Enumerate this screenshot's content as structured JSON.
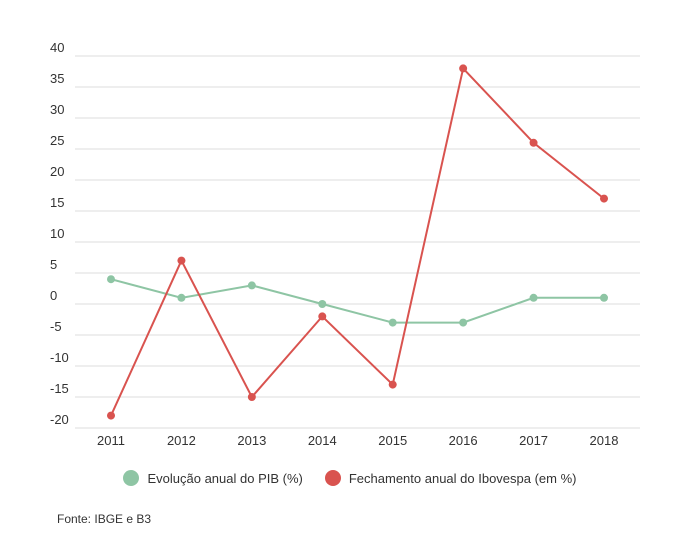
{
  "chart_data": {
    "type": "line",
    "x": [
      "2011",
      "2012",
      "2013",
      "2014",
      "2015",
      "2016",
      "2017",
      "2018"
    ],
    "ylim": [
      -20,
      40
    ],
    "yticks": [
      40,
      35,
      30,
      25,
      20,
      15,
      10,
      5,
      0,
      -5,
      -10,
      -15,
      -20
    ],
    "grid": true,
    "legend_position": "bottom",
    "series": [
      {
        "name": "Evolução anual do PIB (%)",
        "color": "#8ec5a4",
        "values": [
          4.0,
          1.0,
          3.0,
          0.0,
          -3.0,
          -3.0,
          1.0,
          1.0
        ]
      },
      {
        "name": "Fechamento anual do Ibovespa (em %)",
        "color": "#d9534f",
        "values": [
          -18.0,
          7.0,
          -15.0,
          -2.0,
          -13.0,
          38.0,
          26.0,
          17.0
        ]
      }
    ]
  },
  "source": "Fonte: IBGE e B3"
}
